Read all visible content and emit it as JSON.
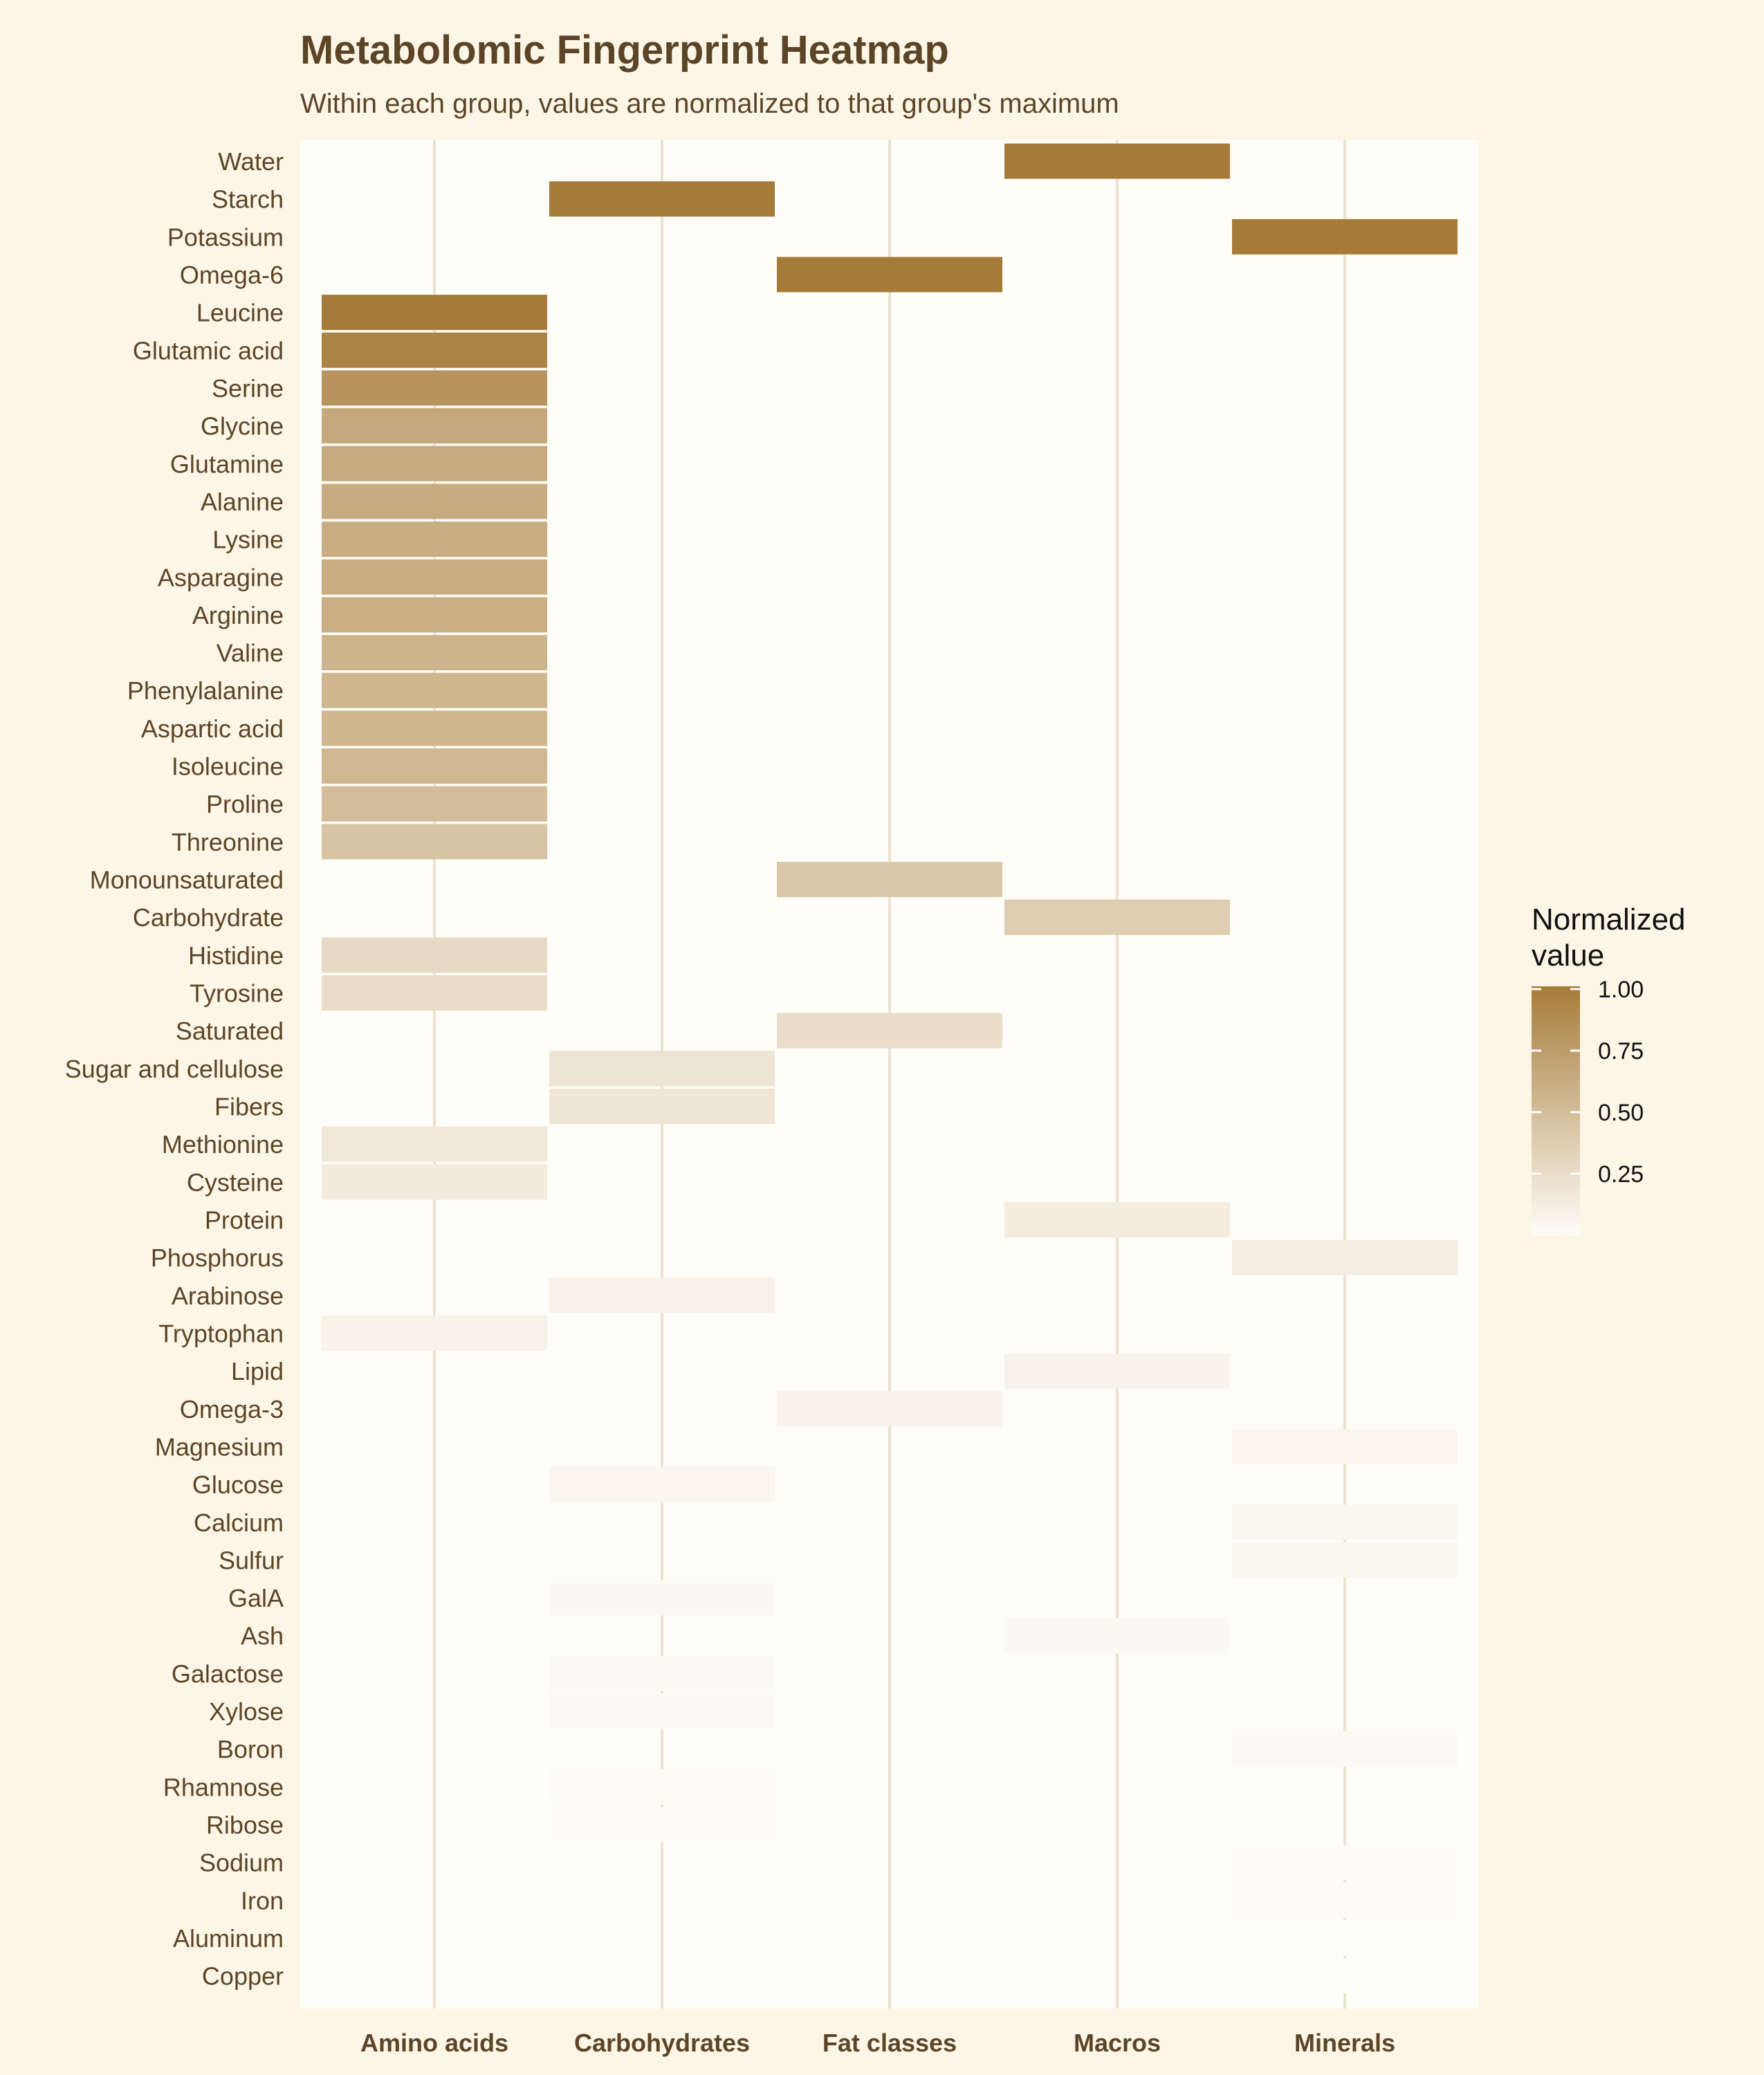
{
  "chart_data": {
    "type": "heatmap",
    "title": "Metabolomic Fingerprint Heatmap",
    "subtitle": "Within each group, values are normalized to that group's maximum",
    "xlabel": "",
    "ylabel": "",
    "x_categories": [
      "Amino acids",
      "Carbohydrates",
      "Fat classes",
      "Macros",
      "Minerals"
    ],
    "y_categories": [
      "Water",
      "Starch",
      "Potassium",
      "Omega-6",
      "Leucine",
      "Glutamic acid",
      "Serine",
      "Glycine",
      "Glutamine",
      "Alanine",
      "Lysine",
      "Asparagine",
      "Arginine",
      "Valine",
      "Phenylalanine",
      "Aspartic acid",
      "Isoleucine",
      "Proline",
      "Threonine",
      "Monounsaturated",
      "Carbohydrate",
      "Histidine",
      "Tyrosine",
      "Saturated",
      "Sugar and cellulose",
      "Fibers",
      "Methionine",
      "Cysteine",
      "Protein",
      "Phosphorus",
      "Arabinose",
      "Tryptophan",
      "Lipid",
      "Omega-3",
      "Magnesium",
      "Glucose",
      "Calcium",
      "Sulfur",
      "GalA",
      "Ash",
      "Galactose",
      "Xylose",
      "Boron",
      "Rhamnose",
      "Ribose",
      "Sodium",
      "Iron",
      "Aluminum",
      "Copper"
    ],
    "cells": [
      {
        "row": "Water",
        "col": "Macros",
        "value": 1.0
      },
      {
        "row": "Starch",
        "col": "Carbohydrates",
        "value": 1.0
      },
      {
        "row": "Potassium",
        "col": "Minerals",
        "value": 1.0
      },
      {
        "row": "Omega-6",
        "col": "Fat classes",
        "value": 1.0
      },
      {
        "row": "Leucine",
        "col": "Amino acids",
        "value": 1.0
      },
      {
        "row": "Glutamic acid",
        "col": "Amino acids",
        "value": 0.94
      },
      {
        "row": "Serine",
        "col": "Amino acids",
        "value": 0.8
      },
      {
        "row": "Glycine",
        "col": "Amino acids",
        "value": 0.65
      },
      {
        "row": "Glutamine",
        "col": "Amino acids",
        "value": 0.64
      },
      {
        "row": "Alanine",
        "col": "Amino acids",
        "value": 0.63
      },
      {
        "row": "Lysine",
        "col": "Amino acids",
        "value": 0.62
      },
      {
        "row": "Asparagine",
        "col": "Amino acids",
        "value": 0.61
      },
      {
        "row": "Arginine",
        "col": "Amino acids",
        "value": 0.6
      },
      {
        "row": "Valine",
        "col": "Amino acids",
        "value": 0.56
      },
      {
        "row": "Phenylalanine",
        "col": "Amino acids",
        "value": 0.55
      },
      {
        "row": "Aspartic acid",
        "col": "Amino acids",
        "value": 0.55
      },
      {
        "row": "Isoleucine",
        "col": "Amino acids",
        "value": 0.54
      },
      {
        "row": "Proline",
        "col": "Amino acids",
        "value": 0.5
      },
      {
        "row": "Threonine",
        "col": "Amino acids",
        "value": 0.44
      },
      {
        "row": "Monounsaturated",
        "col": "Fat classes",
        "value": 0.4
      },
      {
        "row": "Carbohydrate",
        "col": "Macros",
        "value": 0.37
      },
      {
        "row": "Histidine",
        "col": "Amino acids",
        "value": 0.27
      },
      {
        "row": "Tyrosine",
        "col": "Amino acids",
        "value": 0.25
      },
      {
        "row": "Saturated",
        "col": "Fat classes",
        "value": 0.24
      },
      {
        "row": "Sugar and cellulose",
        "col": "Carbohydrates",
        "value": 0.19
      },
      {
        "row": "Fibers",
        "col": "Carbohydrates",
        "value": 0.18
      },
      {
        "row": "Methionine",
        "col": "Amino acids",
        "value": 0.16
      },
      {
        "row": "Cysteine",
        "col": "Amino acids",
        "value": 0.14
      },
      {
        "row": "Protein",
        "col": "Macros",
        "value": 0.13
      },
      {
        "row": "Phosphorus",
        "col": "Minerals",
        "value": 0.12
      },
      {
        "row": "Arabinose",
        "col": "Carbohydrates",
        "value": 0.09
      },
      {
        "row": "Tryptophan",
        "col": "Amino acids",
        "value": 0.08
      },
      {
        "row": "Lipid",
        "col": "Macros",
        "value": 0.07
      },
      {
        "row": "Omega-3",
        "col": "Fat classes",
        "value": 0.07
      },
      {
        "row": "Magnesium",
        "col": "Minerals",
        "value": 0.06
      },
      {
        "row": "Glucose",
        "col": "Carbohydrates",
        "value": 0.05
      },
      {
        "row": "Calcium",
        "col": "Minerals",
        "value": 0.04
      },
      {
        "row": "Sulfur",
        "col": "Minerals",
        "value": 0.04
      },
      {
        "row": "GalA",
        "col": "Carbohydrates",
        "value": 0.03
      },
      {
        "row": "Ash",
        "col": "Macros",
        "value": 0.03
      },
      {
        "row": "Galactose",
        "col": "Carbohydrates",
        "value": 0.025
      },
      {
        "row": "Xylose",
        "col": "Carbohydrates",
        "value": 0.025
      },
      {
        "row": "Boron",
        "col": "Minerals",
        "value": 0.02
      },
      {
        "row": "Rhamnose",
        "col": "Carbohydrates",
        "value": 0.015
      },
      {
        "row": "Ribose",
        "col": "Carbohydrates",
        "value": 0.01
      },
      {
        "row": "Sodium",
        "col": "Minerals",
        "value": 0.01
      },
      {
        "row": "Iron",
        "col": "Minerals",
        "value": 0.005
      },
      {
        "row": "Aluminum",
        "col": "Minerals",
        "value": 0.003
      },
      {
        "row": "Copper",
        "col": "Minerals",
        "value": 0.002
      }
    ],
    "legend": {
      "title": "Normalized value",
      "title_lines": [
        "Normalized",
        "value"
      ],
      "ticks": [
        {
          "value": 1.0,
          "label": "1.00"
        },
        {
          "value": 0.75,
          "label": "0.75"
        },
        {
          "value": 0.5,
          "label": "0.50"
        },
        {
          "value": 0.25,
          "label": "0.25"
        }
      ],
      "range": [
        0,
        1
      ],
      "placement": "right"
    },
    "color_low": "#fffdf8",
    "color_high": "#a67b39",
    "grid": true
  },
  "colors": {
    "page_background": "#fdf6e7",
    "panel_background": "#fffdf8",
    "grid_line": "#ebe2cf",
    "text": "#5c4527",
    "legend_text": "#111111"
  }
}
